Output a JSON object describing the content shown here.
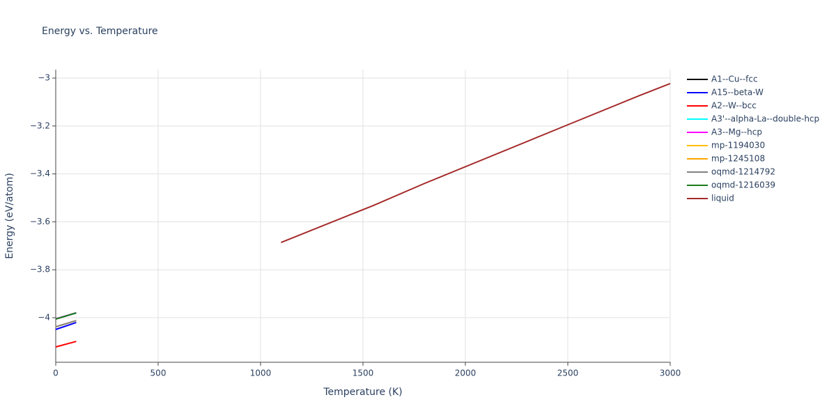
{
  "chart_data": {
    "type": "line",
    "title": "Energy vs. Temperature",
    "xlabel": "Temperature (K)",
    "ylabel": "Energy (eV/atom)",
    "xlim": [
      0,
      3000
    ],
    "ylim": [
      -4.186,
      -2.965
    ],
    "xticks": [
      0,
      500,
      1000,
      1500,
      2000,
      2500,
      3000
    ],
    "yticks": [
      {
        "value": -4,
        "label": "−4"
      },
      {
        "value": -3.8,
        "label": "−3.8"
      },
      {
        "value": -3.6,
        "label": "−3.6"
      },
      {
        "value": -3.4,
        "label": "−3.4"
      },
      {
        "value": -3.2,
        "label": "−3.2"
      },
      {
        "value": -3,
        "label": "−3"
      }
    ],
    "grid": true,
    "legend": "right",
    "series": [
      {
        "name": "A1--Cu--fcc",
        "color": "#000000",
        "x": [
          0,
          100
        ],
        "values": [
          -4.005,
          -3.98
        ]
      },
      {
        "name": "A15--beta-W",
        "color": "#0000ff",
        "x": [
          0,
          100
        ],
        "values": [
          -4.049,
          -4.02
        ]
      },
      {
        "name": "A2--W--bcc",
        "color": "#ff0000",
        "x": [
          0,
          100
        ],
        "values": [
          -4.122,
          -4.099
        ]
      },
      {
        "name": "A3'--alpha-La--double-hcp",
        "color": "#00ffff",
        "x": [
          0,
          100
        ],
        "values": [
          -4.005,
          -3.98
        ]
      },
      {
        "name": "A3--Mg--hcp",
        "color": "#ff00ff",
        "x": [
          0,
          100
        ],
        "values": [
          -4.005,
          -3.98
        ]
      },
      {
        "name": "mp-1194030",
        "color": "#ffbf00",
        "x": [
          0,
          100
        ],
        "values": [
          -4.038,
          -4.012
        ]
      },
      {
        "name": "mp-1245108",
        "color": "#ffa500",
        "x": [
          0,
          100
        ],
        "values": [
          -4.038,
          -4.012
        ]
      },
      {
        "name": "oqmd-1214792",
        "color": "#808080",
        "x": [
          0,
          100
        ],
        "values": [
          -4.038,
          -4.012
        ]
      },
      {
        "name": "oqmd-1216039",
        "color": "#1a7a1a",
        "x": [
          0,
          100
        ],
        "values": [
          -4.006,
          -3.98
        ]
      },
      {
        "name": "liquid",
        "color": "#a52a2a",
        "x": [
          1100,
          1550,
          1800,
          2500,
          2850,
          3000
        ],
        "values": [
          -3.686,
          -3.532,
          -3.44,
          -3.195,
          -3.073,
          -3.023
        ]
      }
    ]
  }
}
